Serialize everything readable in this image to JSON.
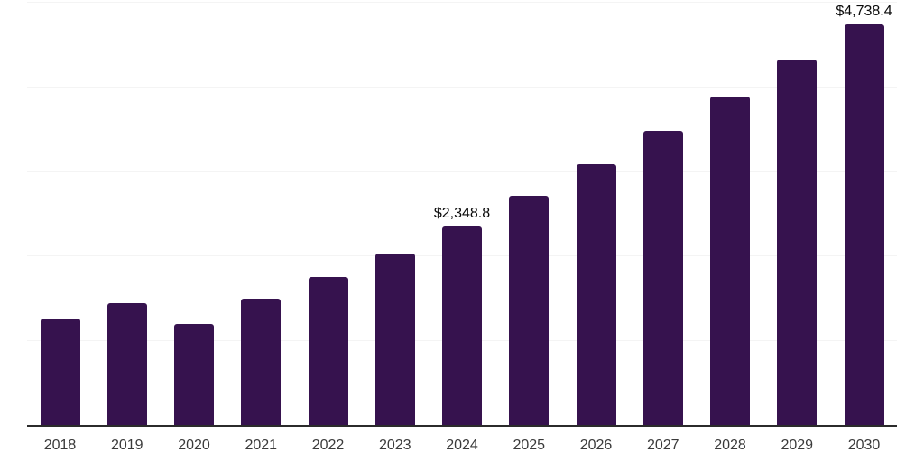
{
  "chart_data": {
    "type": "bar",
    "categories": [
      "2018",
      "2019",
      "2020",
      "2021",
      "2022",
      "2023",
      "2024",
      "2025",
      "2026",
      "2027",
      "2028",
      "2029",
      "2030"
    ],
    "values": [
      1255,
      1435,
      1190,
      1490,
      1750,
      2025,
      2348.8,
      2710,
      3080,
      3475,
      3880,
      4315,
      4738.4
    ],
    "data_labels": {
      "2024": "$2,348.8",
      "2030": "$4,738.4"
    },
    "ylim": [
      0,
      5000
    ],
    "grid_step": 1000,
    "grid": true,
    "legend": false,
    "y_tick_labels_visible": false,
    "colors": {
      "bar": "#36124E",
      "gridline": "#f4f4f4",
      "axis_line": "#2b2b2b",
      "x_tick_label": "#3a3a3a",
      "data_label": "#0a0a0a"
    }
  }
}
